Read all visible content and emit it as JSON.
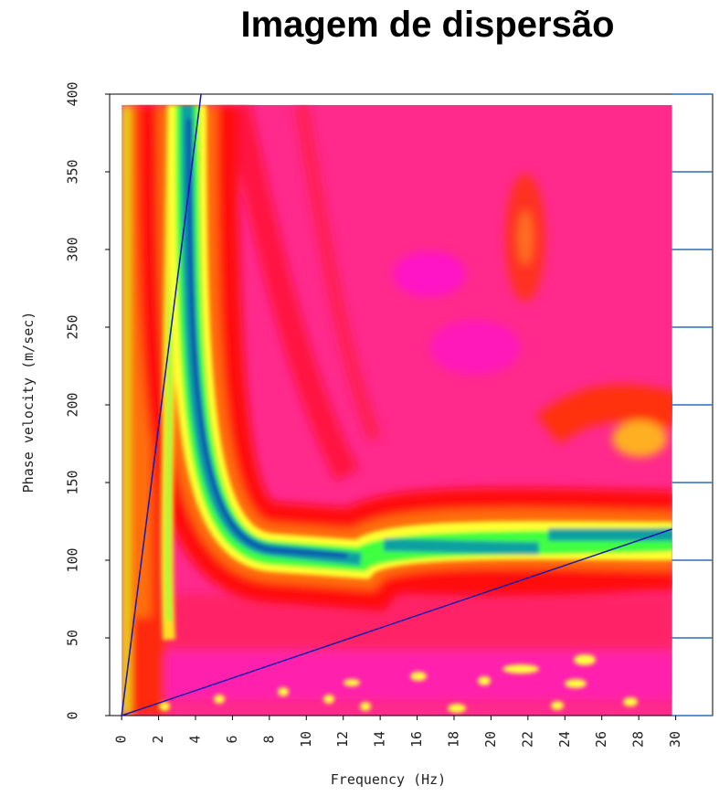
{
  "chart_data": {
    "type": "heatmap",
    "title": "Imagem de dispersão",
    "x_label": "Frequency (Hz)",
    "y_label": "Phase velocity (m/sec)",
    "xlim": [
      -0.65,
      32
    ],
    "ylim": [
      0,
      400
    ],
    "xticks": [
      0,
      2,
      4,
      6,
      8,
      10,
      12,
      14,
      16,
      18,
      20,
      22,
      24,
      26,
      28,
      30
    ],
    "yticks": [
      0,
      50,
      100,
      150,
      200,
      250,
      300,
      350,
      400
    ],
    "image_extent": {
      "x": [
        0,
        29.8
      ],
      "y": [
        0,
        393
      ]
    },
    "grid": true,
    "grid_color": "#2a6fb8",
    "lines": [
      {
        "x": [
          0,
          4.3
        ],
        "y": [
          0,
          400
        ],
        "color": "#1515b0"
      },
      {
        "x": [
          0,
          29.8
        ],
        "y": [
          0,
          120
        ],
        "color": "#1515b0"
      }
    ]
  }
}
